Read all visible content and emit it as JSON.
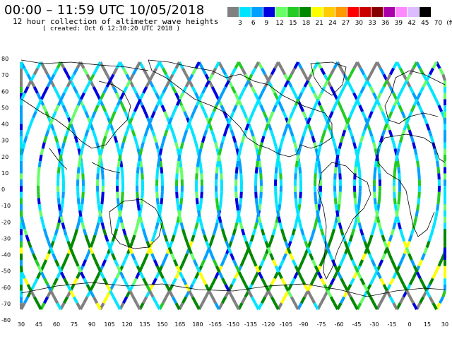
{
  "title": "00:00 – 11:59 UTC 10/05/2018",
  "subtitle": "12 hour collection of altimeter wave heights",
  "created": "( created: Oct  6 12:30:20 UTC 2018 )",
  "legend": {
    "colors": [
      "#808080",
      "#00e5ff",
      "#00a0ff",
      "#0000e0",
      "#66ff66",
      "#22cc22",
      "#008800",
      "#ffff00",
      "#ffcc00",
      "#ff9900",
      "#ff0000",
      "#cc0000",
      "#880000",
      "#aa00aa",
      "#ff88ff",
      "#ddbbff",
      "#000000"
    ],
    "labels": [
      "3",
      "6",
      "9",
      "12",
      "15",
      "18",
      "21",
      "24",
      "27",
      "30",
      "33",
      "36",
      "39",
      "42",
      "45",
      "70",
      "(ft)"
    ]
  },
  "axes": {
    "lat_labels": [
      "80",
      "70",
      "60",
      "50",
      "40",
      "30",
      "20",
      "10",
      "0",
      "-10",
      "-20",
      "-30",
      "-40",
      "-50",
      "-60",
      "-70",
      "-80"
    ],
    "lon_labels": [
      "30",
      "45",
      "60",
      "75",
      "90",
      "105",
      "120",
      "135",
      "150",
      "165",
      "180",
      "-165",
      "-150",
      "-135",
      "-120",
      "-105",
      "-90",
      "-75",
      "-60",
      "-45",
      "-30",
      "-15",
      "0",
      "15",
      "30"
    ]
  },
  "chart_data": {
    "type": "map",
    "title": "00:00 – 11:59 UTC 10/05/2018",
    "subtitle": "12 hour collection of altimeter wave heights",
    "units": "ft",
    "legend_thresholds_ft": [
      3,
      6,
      9,
      12,
      15,
      18,
      21,
      24,
      27,
      30,
      33,
      36,
      39,
      42,
      45,
      70
    ],
    "lon_range": [
      30,
      390
    ],
    "lat_range": [
      -80,
      80
    ]
  }
}
